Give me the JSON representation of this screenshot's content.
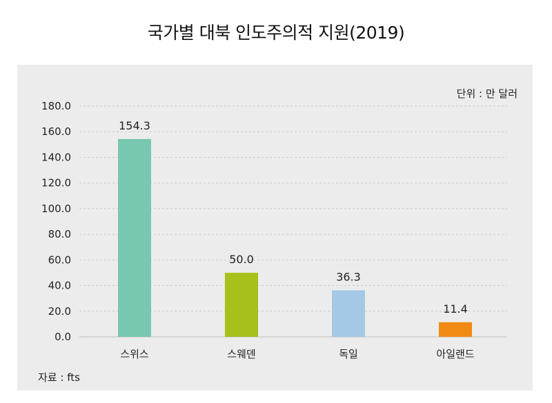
{
  "chart_data": {
    "type": "bar",
    "title": "국가별 대북 인도주의적 지원(2019)",
    "unit_label": "단위 : 만 달러",
    "source_label": "자료 : fts",
    "categories": [
      "스위스",
      "스웨덴",
      "독일",
      "아일랜드"
    ],
    "values": [
      154.3,
      50.0,
      36.3,
      11.4
    ],
    "value_labels": [
      "154.3",
      "50.0",
      "36.3",
      "11.4"
    ],
    "bar_colors": [
      "#78c7b1",
      "#a8c01a",
      "#a5c8e6",
      "#f08a14"
    ],
    "ylim": [
      0,
      180
    ],
    "yticks": [
      0,
      20,
      40,
      60,
      80,
      100,
      120,
      140,
      160,
      180
    ],
    "ytick_labels": [
      "0.0",
      "20.0",
      "40.0",
      "60.0",
      "80.0",
      "100.0",
      "120.0",
      "140.0",
      "160.0",
      "180.0"
    ],
    "grid": true,
    "xlabel": "",
    "ylabel": ""
  }
}
